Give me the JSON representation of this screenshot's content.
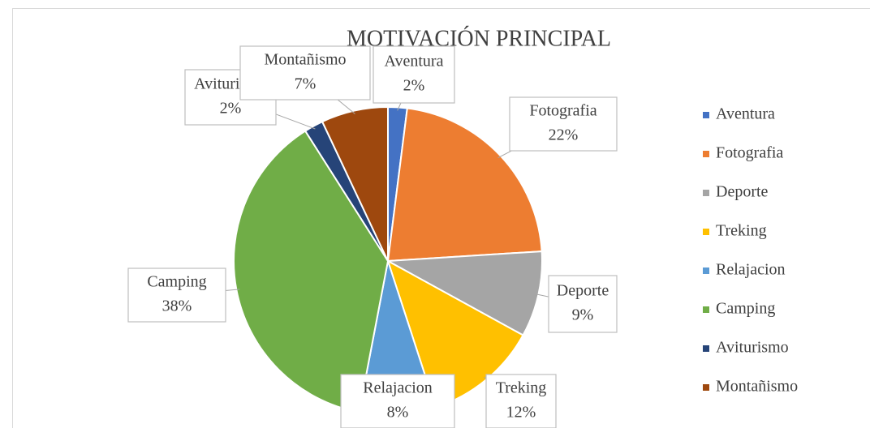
{
  "chart_data": {
    "type": "pie",
    "title": "MOTIVACIÓN PRINCIPAL",
    "categories": [
      "Aventura",
      "Fotografia",
      "Deporte",
      "Treking",
      "Relajacion",
      "Camping",
      "Aviturismo",
      "Montañismo"
    ],
    "values": [
      2,
      22,
      9,
      12,
      8,
      38,
      2,
      7
    ],
    "value_labels": [
      "2%",
      "22%",
      "9%",
      "12%",
      "8%",
      "38%",
      "2%",
      "7%"
    ],
    "colors": [
      "#4472c4",
      "#ed7d31",
      "#a5a5a5",
      "#ffc000",
      "#5b9bd5",
      "#70ad47",
      "#264478",
      "#9e480e"
    ],
    "legend": "right"
  }
}
